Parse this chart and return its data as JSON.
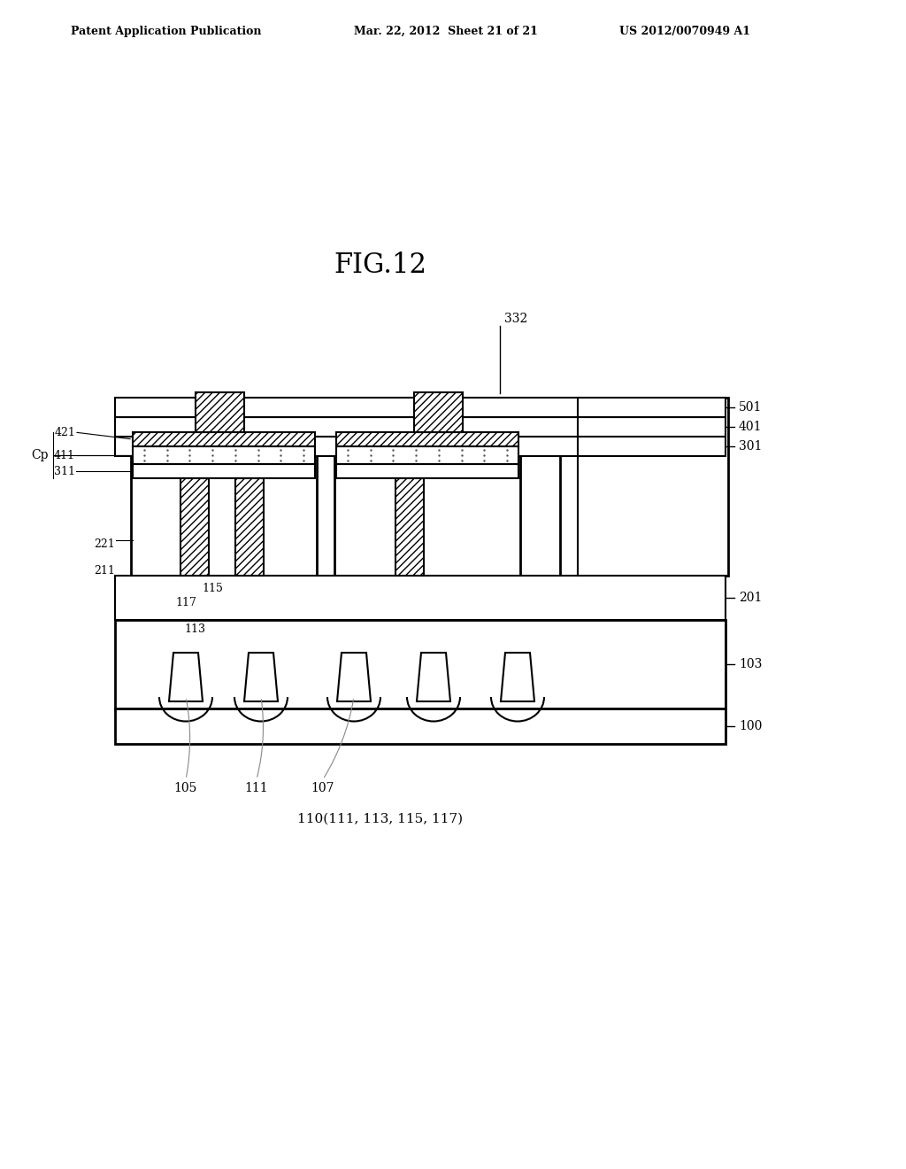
{
  "title": "FIG.12",
  "header_left": "Patent Application Publication",
  "header_mid": "Mar. 22, 2012  Sheet 21 of 21",
  "header_right": "US 2012/0070949 A1",
  "footer_label": "110(111, 113, 115, 117)",
  "bg_color": "#ffffff",
  "line_color": "#000000",
  "hatch_color": "#000000",
  "figsize": [
    10.24,
    13.2
  ],
  "dpi": 100
}
